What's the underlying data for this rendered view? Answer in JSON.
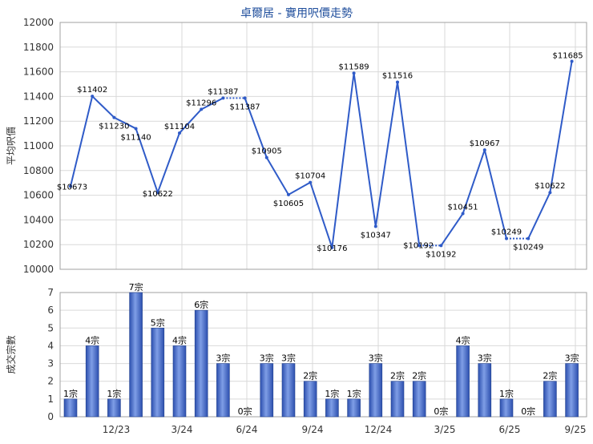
{
  "chart_data": [
    {
      "type": "line",
      "title": "卓爾居 - 實用呎價走勢",
      "ylabel": "平均呎價",
      "ylim": [
        10000,
        12000
      ],
      "yticks": [
        10000,
        10200,
        10400,
        10600,
        10800,
        11000,
        11200,
        11400,
        11600,
        11800,
        12000
      ],
      "values": [
        10673,
        11402,
        11230,
        11140,
        10622,
        11104,
        11296,
        11387,
        11387,
        10905,
        10605,
        10704,
        10176,
        11589,
        10347,
        11516,
        10192,
        10192,
        10451,
        10967,
        10249,
        10249,
        10622,
        11685
      ],
      "labels": [
        "$10673",
        "$11402",
        "$11230",
        "$11140",
        "$10622",
        "$11104",
        "$11296",
        "$11387",
        "$11387",
        "$10905",
        "$10605",
        "$10704",
        "$10176",
        "$11589",
        "$10347",
        "$11516",
        "$10192",
        "$10192",
        "$10451",
        "$10967",
        "$10249",
        "$10249",
        "$10622",
        "$11685"
      ],
      "dotted_segments": [
        7,
        16,
        20
      ],
      "grid": true,
      "color": "#2f5bc8"
    },
    {
      "type": "bar",
      "ylabel": "成交宗數",
      "ylim": [
        0,
        7
      ],
      "yticks": [
        0,
        1,
        2,
        3,
        4,
        5,
        6,
        7
      ],
      "values": [
        1,
        4,
        1,
        7,
        5,
        4,
        6,
        3,
        0,
        3,
        3,
        2,
        1,
        1,
        3,
        2,
        2,
        0,
        4,
        3,
        1,
        0,
        2,
        3
      ],
      "labels": [
        "1宗",
        "4宗",
        "1宗",
        "7宗",
        "5宗",
        "4宗",
        "6宗",
        "3宗",
        "0宗",
        "3宗",
        "3宗",
        "2宗",
        "1宗",
        "1宗",
        "3宗",
        "2宗",
        "2宗",
        "0宗",
        "4宗",
        "3宗",
        "1宗",
        "0宗",
        "2宗",
        "3宗"
      ],
      "xtick_labels": [
        "12/23",
        "3/24",
        "6/24",
        "9/24",
        "12/24",
        "3/25",
        "6/25",
        "9/25"
      ],
      "xtick_index": [
        2,
        5,
        8,
        11,
        14,
        17,
        20,
        23
      ],
      "grid": true,
      "color": "#2f5bc8"
    }
  ]
}
